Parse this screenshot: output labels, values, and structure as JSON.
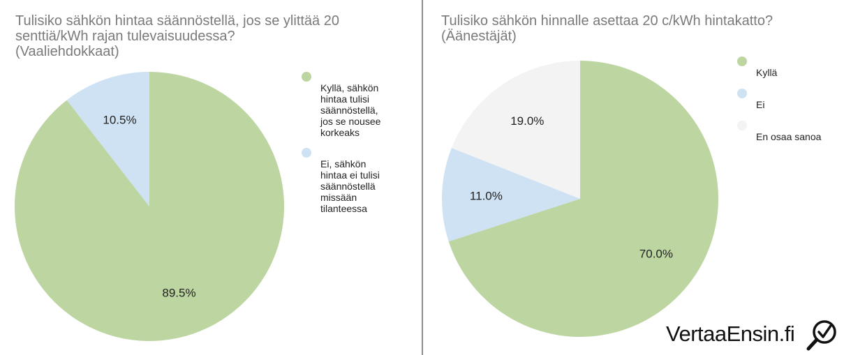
{
  "chart_data": [
    {
      "type": "pie",
      "title": "Tulisiko sähkön hintaa säännöstellä, jos se ylittää 20\nsenttiä/kWh rajan tulevaisuudessa?\n(Vaaliehdokkaat)",
      "slices": [
        {
          "label": "Kyllä, sähkön\nhintaa tulisi\nsäännöstellä,\njos se nousee\nkorkeaks",
          "value": 89.5,
          "display": "89.5%",
          "color": "#bcd5a1"
        },
        {
          "label": "Ei, sähkön\nhintaa ei tulisi\nsäännöstellä\nmissään\ntilanteessa",
          "value": 10.5,
          "display": "10.5%",
          "color": "#cfe2f3"
        }
      ],
      "legend_position": "right",
      "start_angle": "12 o'clock",
      "direction": "clockwise"
    },
    {
      "type": "pie",
      "title": "Tulisiko sähkön hinnalle asettaa 20 c/kWh hintakatto?\n(Äänestäjät)",
      "slices": [
        {
          "label": "Kyllä",
          "value": 70.0,
          "display": "70.0%",
          "color": "#bcd5a1"
        },
        {
          "label": "Ei",
          "value": 11.0,
          "display": "11.0%",
          "color": "#cfe2f3"
        },
        {
          "label": "En osaa sanoa",
          "value": 19.0,
          "display": "19.0%",
          "color": "#f3f3f3"
        }
      ],
      "legend_position": "right",
      "start_angle": "12 o'clock",
      "direction": "clockwise"
    }
  ],
  "brand": {
    "name": "VertaaEnsin.fi",
    "icon": "magnifier-check-icon"
  }
}
